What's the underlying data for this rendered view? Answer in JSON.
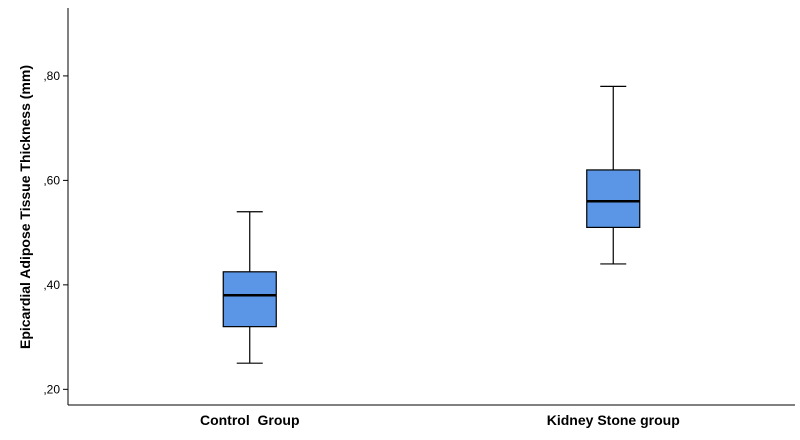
{
  "chart_data": {
    "type": "boxplot",
    "ylabel": "Epicardial Adipose Tissue Thickness (mm)",
    "xlabel": "",
    "ylim": [
      0.17,
      0.93
    ],
    "yticks": [
      0.2,
      0.4,
      0.6,
      0.8
    ],
    "ytick_labels": [
      ",20",
      ",40",
      ",60",
      ",80"
    ],
    "grid": false,
    "categories": [
      "Control  Group",
      "Kidney Stone group"
    ],
    "boxes": [
      {
        "category": "Control  Group",
        "min": 0.25,
        "q1": 0.32,
        "median": 0.38,
        "q3": 0.425,
        "max": 0.54
      },
      {
        "category": "Kidney Stone group",
        "min": 0.44,
        "q1": 0.51,
        "median": 0.56,
        "q3": 0.62,
        "max": 0.78
      }
    ],
    "box_color": "#5b96e6",
    "line_color": "#000000"
  }
}
